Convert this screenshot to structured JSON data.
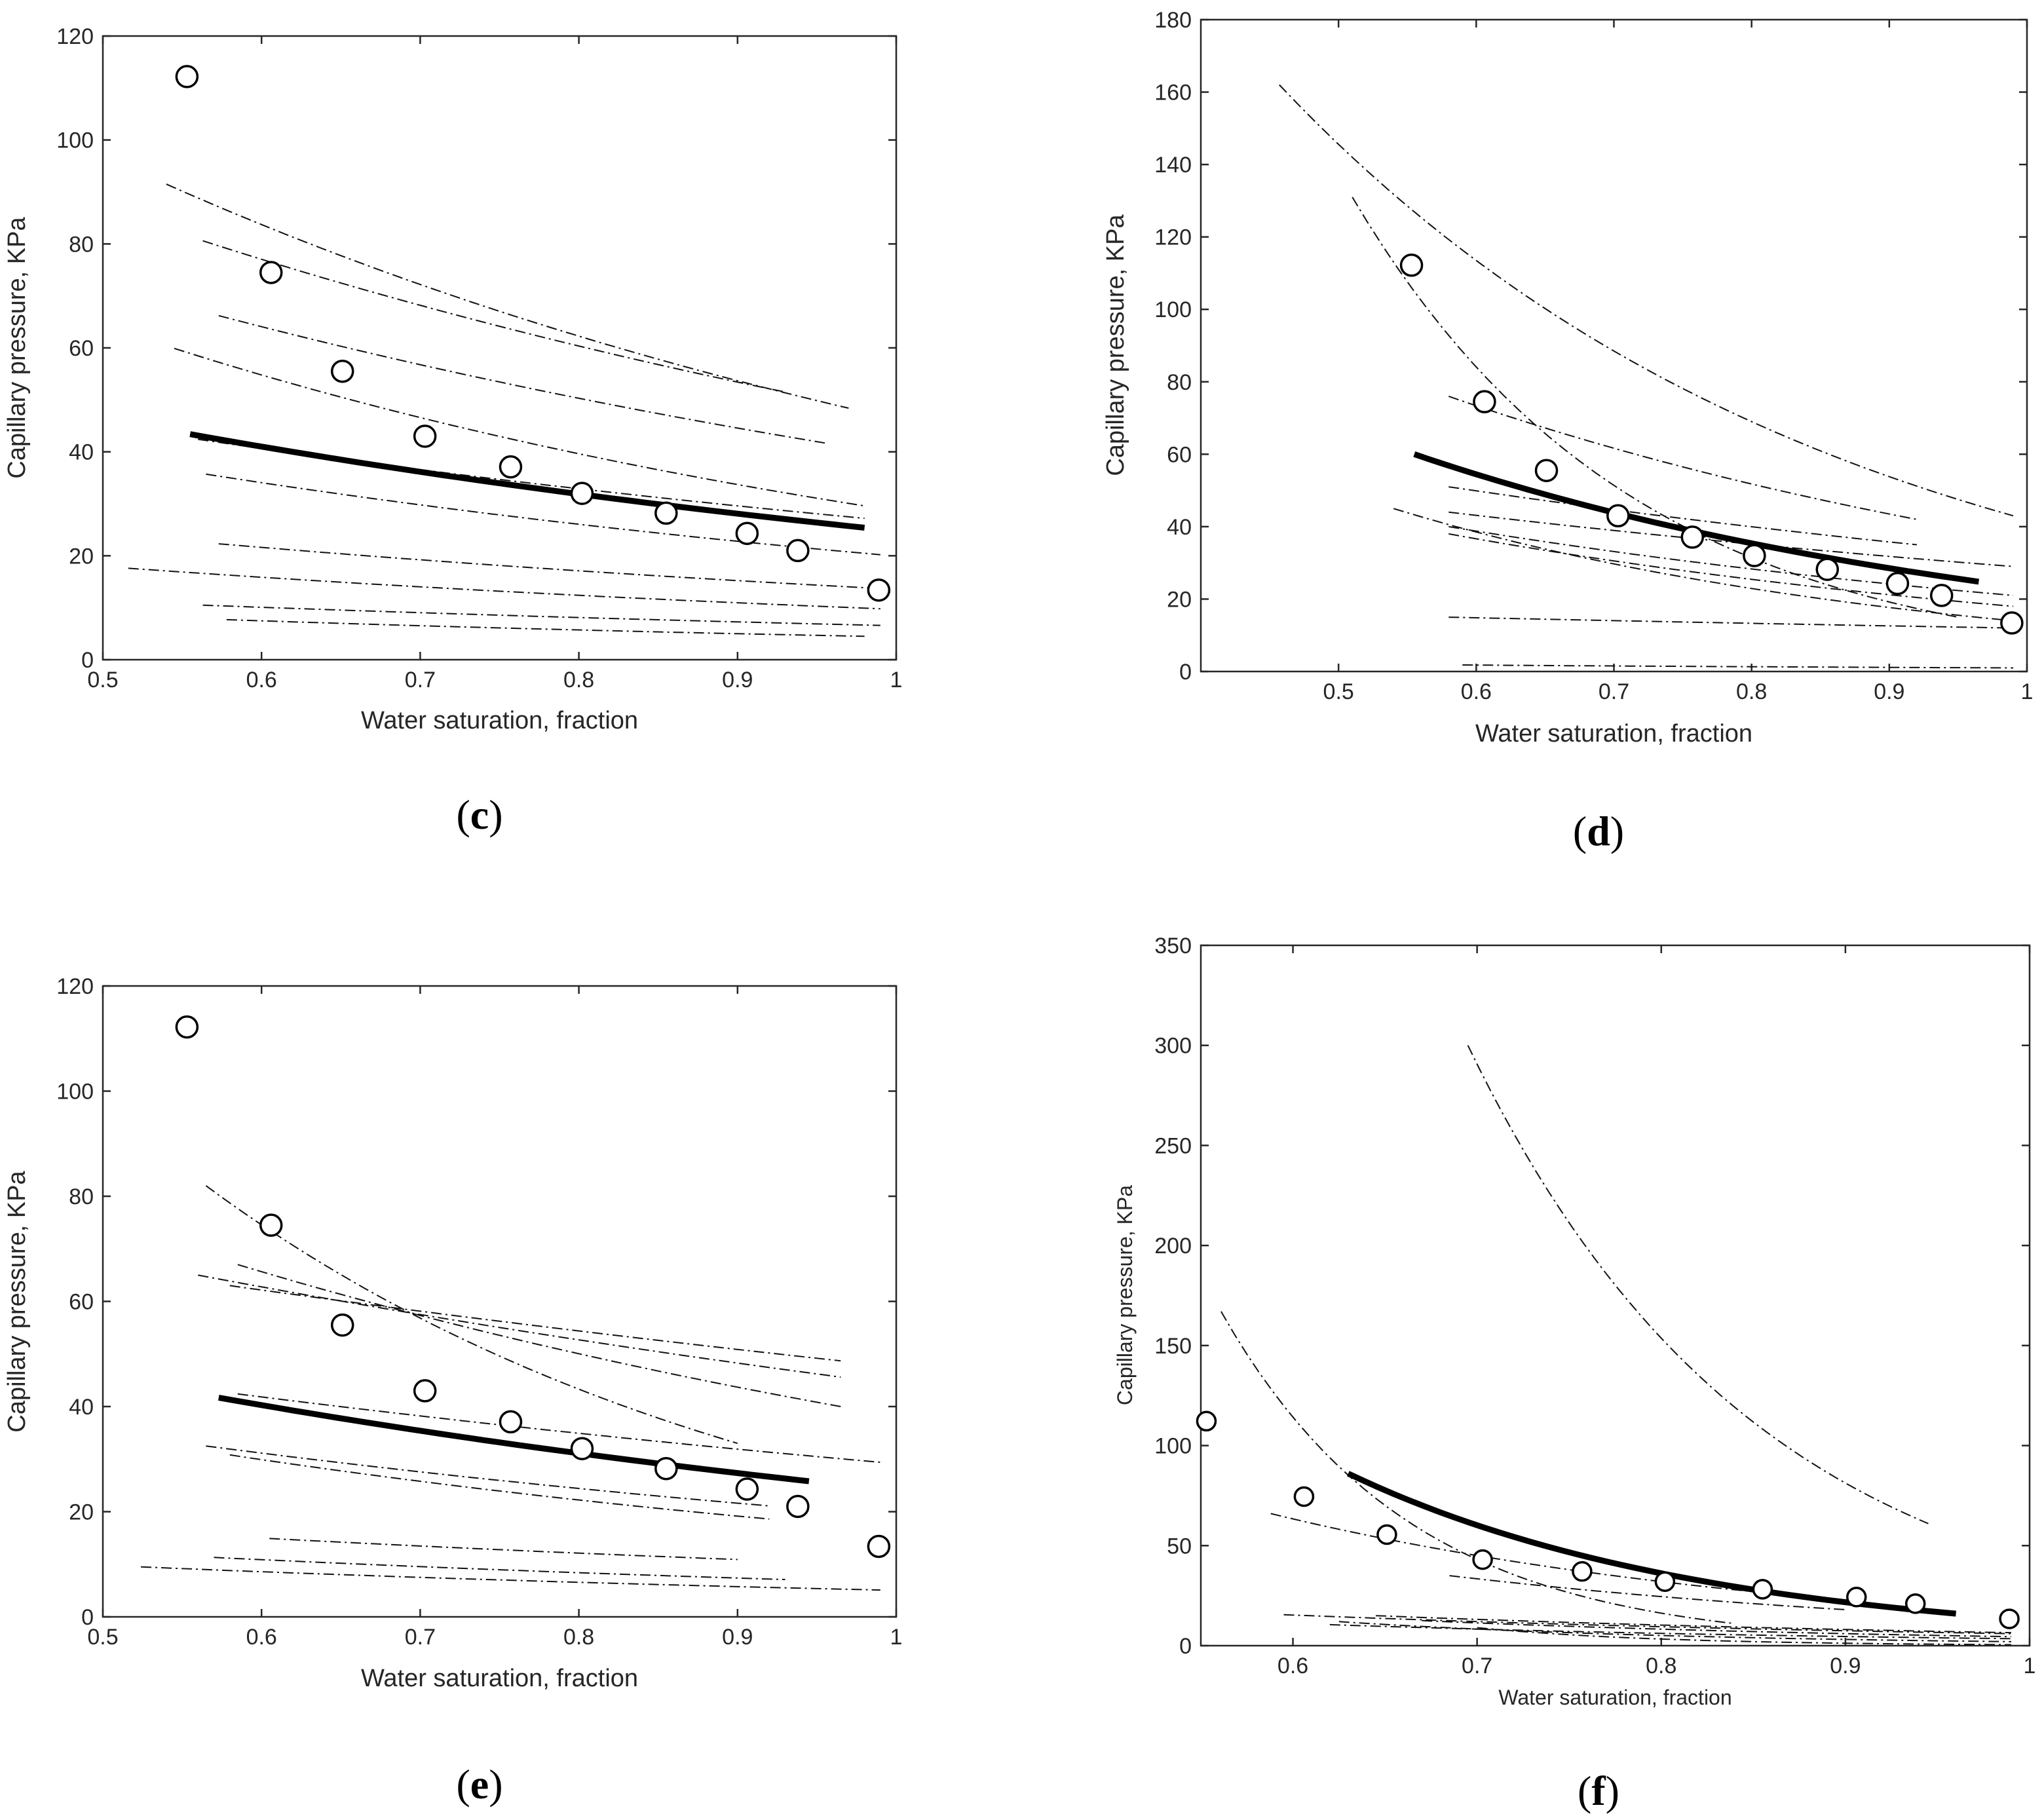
{
  "chart_data": [
    {
      "id": "c",
      "type": "scatter",
      "panel_label": "c",
      "xlabel": "Water saturation, fraction",
      "ylabel": "Capillary pressure, KPa",
      "xlim": [
        0.5,
        1
      ],
      "ylim": [
        0,
        120
      ],
      "xticks": [
        0.5,
        0.6,
        0.7,
        0.8,
        0.9,
        1
      ],
      "xtick_labels": [
        "0.5",
        "0.6",
        "0.7",
        "0.8",
        "0.9",
        "1"
      ],
      "yticks": [
        0,
        20,
        40,
        60,
        80,
        100,
        120
      ],
      "ytick_labels": [
        "0",
        "20",
        "40",
        "60",
        "80",
        "100",
        "120"
      ],
      "observed": {
        "x": [
          0.553,
          0.606,
          0.651,
          0.703,
          0.757,
          0.802,
          0.855,
          0.906,
          0.938,
          0.989
        ],
        "y": [
          112.2,
          74.5,
          55.5,
          43.0,
          37.1,
          32.0,
          28.2,
          24.3,
          21.0,
          13.4
        ]
      },
      "fit": {
        "x0": 0.555,
        "x1": 0.98,
        "y0": 43.4,
        "y1": 25.4
      },
      "reference_curves": [
        {
          "x0": 0.54,
          "x1": 0.97,
          "y0": 91.5,
          "y1": 48.4
        },
        {
          "x0": 0.563,
          "x1": 0.93,
          "y0": 80.6,
          "y1": 51.5
        },
        {
          "x0": 0.573,
          "x1": 0.955,
          "y0": 66.2,
          "y1": 41.7
        },
        {
          "x0": 0.545,
          "x1": 0.98,
          "y0": 59.9,
          "y1": 29.6
        },
        {
          "x0": 0.56,
          "x1": 0.98,
          "y0": 42.4,
          "y1": 27.2
        },
        {
          "x0": 0.565,
          "x1": 0.99,
          "y0": 35.7,
          "y1": 20.2
        },
        {
          "x0": 0.573,
          "x1": 0.99,
          "y0": 22.3,
          "y1": 13.7
        },
        {
          "x0": 0.516,
          "x1": 0.99,
          "y0": 17.6,
          "y1": 9.8
        },
        {
          "x0": 0.563,
          "x1": 0.99,
          "y0": 10.5,
          "y1": 6.6
        },
        {
          "x0": 0.578,
          "x1": 0.98,
          "y0": 7.7,
          "y1": 4.5
        }
      ]
    },
    {
      "id": "d",
      "type": "scatter",
      "panel_label": "d",
      "xlabel": "Water saturation, fraction",
      "ylabel": "Capillary pressure, KPa",
      "xlim": [
        0.4,
        1
      ],
      "ylim": [
        0,
        180
      ],
      "xticks": [
        0.5,
        0.6,
        0.7,
        0.8,
        0.9,
        1
      ],
      "xtick_labels": [
        "0.5",
        "0.6",
        "0.7",
        "0.8",
        "0.9",
        "1"
      ],
      "yticks": [
        0,
        20,
        40,
        60,
        80,
        100,
        120,
        140,
        160,
        180
      ],
      "ytick_labels": [
        "0",
        "20",
        "40",
        "60",
        "80",
        "100",
        "120",
        "140",
        "160",
        "180"
      ],
      "observed": {
        "x": [
          0.553,
          0.606,
          0.651,
          0.703,
          0.757,
          0.802,
          0.855,
          0.906,
          0.938,
          0.989
        ],
        "y": [
          112.2,
          74.5,
          55.5,
          43.0,
          37.1,
          32.0,
          28.2,
          24.3,
          21.0,
          13.4
        ]
      },
      "fit": {
        "x0": 0.555,
        "x1": 0.965,
        "y0": 60.0,
        "y1": 24.8
      },
      "reference_curves": [
        {
          "x0": 0.457,
          "x1": 0.99,
          "y0": 162.0,
          "y1": 43.0
        },
        {
          "x0": 0.51,
          "x1": 0.95,
          "y0": 131.0,
          "y1": 15.0
        },
        {
          "x0": 0.58,
          "x1": 0.92,
          "y0": 76.0,
          "y1": 42.0
        },
        {
          "x0": 0.58,
          "x1": 0.92,
          "y0": 51.0,
          "y1": 35.0
        },
        {
          "x0": 0.54,
          "x1": 0.99,
          "y0": 45.0,
          "y1": 14.0
        },
        {
          "x0": 0.58,
          "x1": 0.99,
          "y0": 44.0,
          "y1": 29.0
        },
        {
          "x0": 0.58,
          "x1": 0.99,
          "y0": 40.0,
          "y1": 21.0
        },
        {
          "x0": 0.58,
          "x1": 0.99,
          "y0": 38.0,
          "y1": 18.0
        },
        {
          "x0": 0.58,
          "x1": 0.99,
          "y0": 15.0,
          "y1": 12.0
        },
        {
          "x0": 0.59,
          "x1": 0.99,
          "y0": 1.8,
          "y1": 1.0
        }
      ]
    },
    {
      "id": "e",
      "type": "scatter",
      "panel_label": "e",
      "xlabel": "Water saturation, fraction",
      "ylabel": "Capillary pressure, KPa",
      "xlim": [
        0.5,
        1
      ],
      "ylim": [
        0,
        120
      ],
      "xticks": [
        0.5,
        0.6,
        0.7,
        0.8,
        0.9,
        1
      ],
      "xtick_labels": [
        "0.5",
        "0.6",
        "0.7",
        "0.8",
        "0.9",
        "1"
      ],
      "yticks": [
        0,
        20,
        40,
        60,
        80,
        100,
        120
      ],
      "ytick_labels": [
        "0",
        "20",
        "40",
        "60",
        "80",
        "100",
        "120"
      ],
      "observed": {
        "x": [
          0.553,
          0.606,
          0.651,
          0.703,
          0.757,
          0.802,
          0.855,
          0.906,
          0.938,
          0.989
        ],
        "y": [
          112.2,
          74.5,
          55.5,
          43.0,
          37.1,
          32.0,
          28.2,
          24.3,
          21.0,
          13.4
        ]
      },
      "fit": {
        "x0": 0.573,
        "x1": 0.945,
        "y0": 41.7,
        "y1": 25.8
      },
      "reference_curves": [
        {
          "x0": 0.565,
          "x1": 0.9,
          "y0": 82.0,
          "y1": 33.0
        },
        {
          "x0": 0.585,
          "x1": 0.965,
          "y0": 67.0,
          "y1": 40.0
        },
        {
          "x0": 0.56,
          "x1": 0.965,
          "y0": 65.0,
          "y1": 45.6
        },
        {
          "x0": 0.58,
          "x1": 0.965,
          "y0": 63.0,
          "y1": 48.7
        },
        {
          "x0": 0.585,
          "x1": 0.99,
          "y0": 42.4,
          "y1": 29.4
        },
        {
          "x0": 0.565,
          "x1": 0.92,
          "y0": 32.5,
          "y1": 21.1
        },
        {
          "x0": 0.58,
          "x1": 0.92,
          "y0": 30.8,
          "y1": 18.6
        },
        {
          "x0": 0.605,
          "x1": 0.9,
          "y0": 14.9,
          "y1": 10.9
        },
        {
          "x0": 0.57,
          "x1": 0.93,
          "y0": 11.3,
          "y1": 7.1
        },
        {
          "x0": 0.524,
          "x1": 0.99,
          "y0": 9.5,
          "y1": 5.1
        }
      ]
    },
    {
      "id": "f",
      "type": "scatter",
      "panel_label": "f",
      "xlabel": "Water saturation, fraction",
      "ylabel": "Capillary pressure, KPa",
      "xlim": [
        0.55,
        1
      ],
      "ylim": [
        0,
        350
      ],
      "xticks": [
        0.6,
        0.7,
        0.8,
        0.9,
        1
      ],
      "xtick_labels": [
        "0.6",
        "0.7",
        "0.8",
        "0.9",
        "1"
      ],
      "yticks": [
        0,
        50,
        100,
        150,
        200,
        250,
        300,
        350
      ],
      "ytick_labels": [
        "0",
        "50",
        "100",
        "150",
        "200",
        "250",
        "300",
        "350"
      ],
      "observed": {
        "x": [
          0.553,
          0.606,
          0.651,
          0.703,
          0.757,
          0.802,
          0.855,
          0.906,
          0.938,
          0.989
        ],
        "y": [
          112.2,
          74.5,
          55.5,
          43.0,
          37.1,
          32.0,
          28.2,
          24.3,
          21.0,
          13.4
        ]
      },
      "fit": {
        "x0": 0.63,
        "x1": 0.96,
        "y0": 86.0,
        "y1": 16.0
      },
      "reference_curves": [
        {
          "x0": 0.695,
          "x1": 0.945,
          "y0": 300.0,
          "y1": 61.0
        },
        {
          "x0": 0.561,
          "x1": 0.84,
          "y0": 167.0,
          "y1": 11.0
        },
        {
          "x0": 0.588,
          "x1": 0.91,
          "y0": 66.0,
          "y1": 22.0
        },
        {
          "x0": 0.685,
          "x1": 0.9,
          "y0": 35.0,
          "y1": 18.0
        },
        {
          "x0": 0.595,
          "x1": 0.99,
          "y0": 15.5,
          "y1": 6.0
        },
        {
          "x0": 0.645,
          "x1": 0.99,
          "y0": 15.0,
          "y1": 6.5
        },
        {
          "x0": 0.625,
          "x1": 0.99,
          "y0": 12.0,
          "y1": 2.0
        },
        {
          "x0": 0.67,
          "x1": 0.99,
          "y0": 12.5,
          "y1": 4.5
        },
        {
          "x0": 0.62,
          "x1": 0.99,
          "y0": 10.5,
          "y1": 3.5
        },
        {
          "x0": 0.7,
          "x1": 0.99,
          "y0": 9.0,
          "y1": 0.5
        }
      ]
    }
  ]
}
